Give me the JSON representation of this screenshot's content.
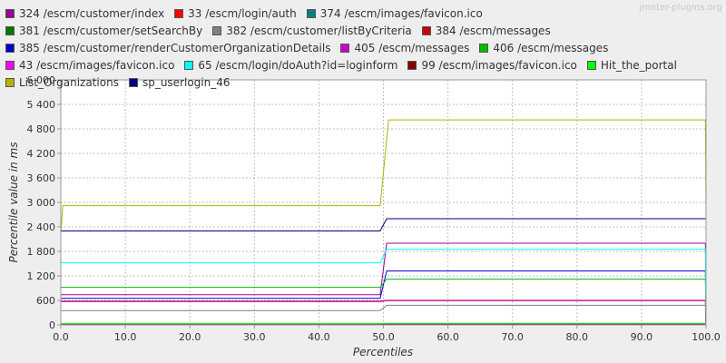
{
  "watermark": "jmeter-plugins.org",
  "chart_data": {
    "type": "line",
    "xlabel": "Percentiles",
    "ylabel": "Percentile value in ms",
    "xlim": [
      0,
      100
    ],
    "ylim": [
      0,
      6000
    ],
    "xticks": [
      0,
      10,
      20,
      30,
      40,
      50,
      60,
      70,
      80,
      90,
      100
    ],
    "xtick_labels": [
      "0.0",
      "10.0",
      "20.0",
      "30.0",
      "40.0",
      "50.0",
      "60.0",
      "70.0",
      "80.0",
      "90.0",
      "100.0"
    ],
    "yticks": [
      0,
      600,
      1200,
      1800,
      2400,
      3000,
      3600,
      4200,
      4800,
      5400,
      6000
    ],
    "ytick_labels": [
      "0",
      "600",
      "1 200",
      "1 800",
      "2 400",
      "3 000",
      "3 600",
      "4 200",
      "4 800",
      "5 400",
      "6 000"
    ],
    "grid": true,
    "legend_position": "top",
    "series": [
      {
        "name": "324 /escm/customer/index",
        "color": "#990099",
        "x": [
          0,
          49.5,
          50.5,
          99.9,
          100
        ],
        "y": [
          740,
          740,
          2000,
          2000,
          0
        ]
      },
      {
        "name": "33 /escm/login/auth",
        "color": "#ff0000",
        "x": [
          0,
          49.5,
          50.5,
          99.9,
          100
        ],
        "y": [
          20,
          20,
          20,
          20,
          0
        ]
      },
      {
        "name": "374 /escm/images/favicon.ico",
        "color": "#008080",
        "x": [
          0,
          49.5,
          50.5,
          99.9,
          100
        ],
        "y": [
          10,
          10,
          15,
          15,
          0
        ]
      },
      {
        "name": "381 /escm/customer/setSearchBy",
        "color": "#007700",
        "x": [
          0,
          49.5,
          50.5,
          99.9,
          100
        ],
        "y": [
          25,
          25,
          30,
          30,
          0
        ]
      },
      {
        "name": "382 /escm/customer/listByCriteria",
        "color": "#808080",
        "x": [
          0,
          49.5,
          50.5,
          99.9,
          100
        ],
        "y": [
          350,
          350,
          480,
          480,
          0
        ]
      },
      {
        "name": "384 /escm/messages",
        "color": "#cc0000",
        "x": [
          0,
          49.5,
          50.5,
          99.9,
          100
        ],
        "y": [
          580,
          580,
          600,
          600,
          0
        ]
      },
      {
        "name": "385 /escm/customer/renderCustomerOrganizationDetails",
        "color": "#0000cc",
        "x": [
          0,
          49.5,
          50.5,
          99.9,
          100
        ],
        "y": [
          650,
          650,
          1320,
          1320,
          0
        ]
      },
      {
        "name": "405 /escm/messages",
        "color": "#cc00cc",
        "x": [
          0,
          49.5,
          50.5,
          99.9,
          100
        ],
        "y": [
          570,
          570,
          590,
          590,
          0
        ]
      },
      {
        "name": "406 /escm/messages",
        "color": "#00bb00",
        "x": [
          0,
          49.5,
          50.5,
          99.9,
          100
        ],
        "y": [
          920,
          920,
          1120,
          1120,
          0
        ]
      },
      {
        "name": "43 /escm/images/favicon.ico",
        "color": "#ff00ff",
        "x": [
          0,
          49.5,
          50.5,
          99.9,
          100
        ],
        "y": [
          15,
          15,
          20,
          20,
          0
        ]
      },
      {
        "name": "65 /escm/login/doAuth?id=loginform",
        "color": "#00ffff",
        "x": [
          0,
          49.5,
          50.5,
          99.9,
          100
        ],
        "y": [
          1520,
          1520,
          1850,
          1850,
          0
        ]
      },
      {
        "name": "99 /escm/images/favicon.ico",
        "color": "#800000",
        "x": [
          0,
          49.5,
          50.5,
          99.9,
          100
        ],
        "y": [
          10,
          10,
          10,
          10,
          0
        ]
      },
      {
        "name": "Hit_the_portal",
        "color": "#00ff00",
        "x": [
          0,
          49.5,
          50.5,
          99.9,
          100
        ],
        "y": [
          30,
          30,
          40,
          40,
          0
        ]
      },
      {
        "name": "List_Organizations",
        "color": "#b3b300",
        "x": [
          0,
          0.3,
          49.5,
          50.8,
          99.9,
          100
        ],
        "y": [
          2200,
          2920,
          2920,
          5020,
          5020,
          2600
        ]
      },
      {
        "name": "sp_userlogin_46",
        "color": "#000080",
        "x": [
          0,
          49.5,
          50.5,
          99.9,
          100
        ],
        "y": [
          2300,
          2300,
          2600,
          2600,
          2600
        ]
      }
    ]
  }
}
